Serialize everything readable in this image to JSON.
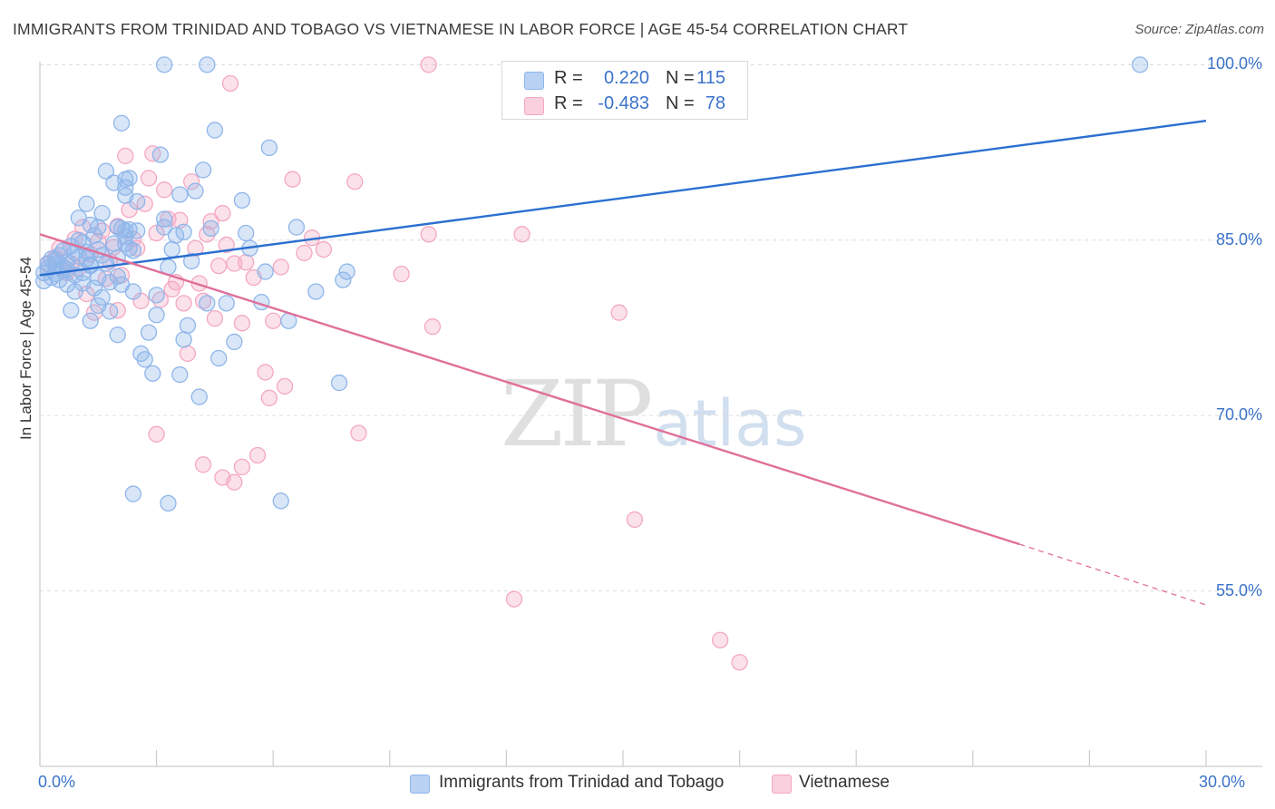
{
  "header": {
    "title": "IMMIGRANTS FROM TRINIDAD AND TOBAGO VS VIETNAMESE IN LABOR FORCE | AGE 45-54 CORRELATION CHART",
    "source": "Source: ZipAtlas.com"
  },
  "watermark": {
    "zip": "ZIP",
    "atlas": "atlas"
  },
  "legend": {
    "series1": {
      "r_label": "R =",
      "r_value": "0.220",
      "n_label": "N =",
      "n_value": "115",
      "color": "#a8c8f0"
    },
    "series2": {
      "r_label": "R =",
      "r_value": "-0.483",
      "n_label": "N =",
      "n_value": "78",
      "color": "#f8bcd0"
    }
  },
  "bottom_legend": {
    "series1_label": "Immigrants from Trinidad and Tobago",
    "series2_label": "Vietnamese"
  },
  "colors": {
    "blue_point": "#8fb6ea",
    "blue_line": "#2b6fd0",
    "pink_point": "#f4a8c2",
    "pink_line": "#e0709a",
    "grid": "#dddddd"
  },
  "chart_data": {
    "type": "scatter",
    "title": "IMMIGRANTS FROM TRINIDAD AND TOBAGO VS VIETNAMESE IN LABOR FORCE | AGE 45-54 CORRELATION CHART",
    "xlabel": "",
    "ylabel": "In Labor Force | Age 45-54",
    "xlim": [
      0,
      30
    ],
    "ylim": [
      40,
      101.5
    ],
    "x_tick_labels": [
      "0.0%",
      "30.0%"
    ],
    "y_ticks": [
      55,
      70,
      85,
      100
    ],
    "y_tick_labels": [
      "55.0%",
      "70.0%",
      "85.0%",
      "100.0%"
    ],
    "grid": true,
    "series": [
      {
        "name": "Immigrants from Trinidad and Tobago",
        "r": 0.22,
        "n": 115,
        "trend": {
          "x": [
            0,
            30
          ],
          "y": [
            82.0,
            95.2
          ]
        },
        "points": [
          [
            0.1,
            82.2
          ],
          [
            0.1,
            81.5
          ],
          [
            0.2,
            83.0
          ],
          [
            0.2,
            82.6
          ],
          [
            0.3,
            81.8
          ],
          [
            0.3,
            83.4
          ],
          [
            0.4,
            82.1
          ],
          [
            0.4,
            82.9
          ],
          [
            0.5,
            81.6
          ],
          [
            0.5,
            83.7
          ],
          [
            0.6,
            82.4
          ],
          [
            0.6,
            84.1
          ],
          [
            0.7,
            81.2
          ],
          [
            0.7,
            83.1
          ],
          [
            0.8,
            79.0
          ],
          [
            0.8,
            84.5
          ],
          [
            0.9,
            82.0
          ],
          [
            0.9,
            80.6
          ],
          [
            1.0,
            83.6
          ],
          [
            1.0,
            85.0
          ],
          [
            1.0,
            86.9
          ],
          [
            1.1,
            81.3
          ],
          [
            1.1,
            82.2
          ],
          [
            1.2,
            88.1
          ],
          [
            1.2,
            84.0
          ],
          [
            1.2,
            83.4
          ],
          [
            1.3,
            82.9
          ],
          [
            1.3,
            78.1
          ],
          [
            1.4,
            85.4
          ],
          [
            1.4,
            80.9
          ],
          [
            1.5,
            84.2
          ],
          [
            1.5,
            86.1
          ],
          [
            1.5,
            79.4
          ],
          [
            1.6,
            80.1
          ],
          [
            1.6,
            87.3
          ],
          [
            1.7,
            90.9
          ],
          [
            1.7,
            83.0
          ],
          [
            1.8,
            81.4
          ],
          [
            1.8,
            78.9
          ],
          [
            1.9,
            84.7
          ],
          [
            1.9,
            89.9
          ],
          [
            2.0,
            76.9
          ],
          [
            2.0,
            86.1
          ],
          [
            2.0,
            81.9
          ],
          [
            2.0,
            83.5
          ],
          [
            2.1,
            81.2
          ],
          [
            2.1,
            95.0
          ],
          [
            2.2,
            89.5
          ],
          [
            2.2,
            85.8
          ],
          [
            2.3,
            90.3
          ],
          [
            2.4,
            84.1
          ],
          [
            2.5,
            88.3
          ],
          [
            2.3,
            85.9
          ],
          [
            2.2,
            90.2
          ],
          [
            2.2,
            85.3
          ],
          [
            2.1,
            86.0
          ],
          [
            2.2,
            88.8
          ],
          [
            2.2,
            84.7
          ],
          [
            2.3,
            84.3
          ],
          [
            2.4,
            80.6
          ],
          [
            2.5,
            85.8
          ],
          [
            2.6,
            75.3
          ],
          [
            2.7,
            74.8
          ],
          [
            2.8,
            77.1
          ],
          [
            2.9,
            73.6
          ],
          [
            3.0,
            78.6
          ],
          [
            3.0,
            80.3
          ],
          [
            3.1,
            92.3
          ],
          [
            3.2,
            86.1
          ],
          [
            3.2,
            86.8
          ],
          [
            3.3,
            82.7
          ],
          [
            3.4,
            84.2
          ],
          [
            3.5,
            85.4
          ],
          [
            3.6,
            73.5
          ],
          [
            3.6,
            88.9
          ],
          [
            3.7,
            76.5
          ],
          [
            3.7,
            85.7
          ],
          [
            3.8,
            77.7
          ],
          [
            3.9,
            83.2
          ],
          [
            4.0,
            89.2
          ],
          [
            4.1,
            71.6
          ],
          [
            4.2,
            91.0
          ],
          [
            4.3,
            79.6
          ],
          [
            4.4,
            86.0
          ],
          [
            4.5,
            94.4
          ],
          [
            4.6,
            74.9
          ],
          [
            4.8,
            79.6
          ],
          [
            5.0,
            76.3
          ],
          [
            5.2,
            88.4
          ],
          [
            5.3,
            85.6
          ],
          [
            5.4,
            84.3
          ],
          [
            5.7,
            79.7
          ],
          [
            5.8,
            82.3
          ],
          [
            5.9,
            92.9
          ],
          [
            6.2,
            62.7
          ],
          [
            6.4,
            78.1
          ],
          [
            6.6,
            86.1
          ],
          [
            7.1,
            80.6
          ],
          [
            7.7,
            72.8
          ],
          [
            7.8,
            81.6
          ],
          [
            7.9,
            82.3
          ],
          [
            3.2,
            100.0
          ],
          [
            4.3,
            100.0
          ],
          [
            28.3,
            100.0
          ],
          [
            2.4,
            63.3
          ],
          [
            3.3,
            62.5
          ],
          [
            1.3,
            82.8
          ],
          [
            1.5,
            81.8
          ],
          [
            0.6,
            82.7
          ],
          [
            0.9,
            83.9
          ],
          [
            1.1,
            84.8
          ],
          [
            1.3,
            86.3
          ],
          [
            0.4,
            83.3
          ],
          [
            0.7,
            82.5
          ],
          [
            1.6,
            83.7
          ]
        ]
      },
      {
        "name": "Vietnamese",
        "r": -0.483,
        "n": 78,
        "trend": {
          "x": [
            0,
            25.2
          ],
          "y": [
            85.5,
            59.0
          ]
        },
        "trend_dashed": {
          "x": [
            25.2,
            30
          ],
          "y": [
            59.0,
            53.8
          ]
        },
        "points": [
          [
            0.2,
            82.9
          ],
          [
            0.4,
            83.5
          ],
          [
            0.5,
            84.3
          ],
          [
            0.7,
            82.2
          ],
          [
            0.8,
            83.0
          ],
          [
            0.9,
            85.1
          ],
          [
            1.0,
            82.6
          ],
          [
            1.1,
            86.1
          ],
          [
            1.2,
            80.4
          ],
          [
            1.3,
            83.8
          ],
          [
            1.4,
            78.8
          ],
          [
            1.5,
            84.9
          ],
          [
            1.6,
            85.8
          ],
          [
            1.7,
            81.7
          ],
          [
            1.8,
            83.2
          ],
          [
            1.9,
            84.4
          ],
          [
            2.0,
            86.2
          ],
          [
            2.1,
            82.0
          ],
          [
            2.2,
            92.2
          ],
          [
            2.3,
            87.6
          ],
          [
            2.4,
            85.1
          ],
          [
            2.5,
            84.3
          ],
          [
            2.6,
            79.8
          ],
          [
            2.7,
            88.1
          ],
          [
            2.8,
            90.3
          ],
          [
            2.9,
            92.4
          ],
          [
            3.0,
            85.6
          ],
          [
            3.1,
            79.9
          ],
          [
            3.2,
            89.3
          ],
          [
            3.3,
            86.8
          ],
          [
            3.4,
            80.8
          ],
          [
            3.5,
            81.4
          ],
          [
            3.6,
            86.7
          ],
          [
            3.7,
            79.6
          ],
          [
            3.8,
            75.3
          ],
          [
            3.9,
            90.0
          ],
          [
            4.0,
            84.3
          ],
          [
            4.1,
            81.3
          ],
          [
            4.2,
            79.8
          ],
          [
            4.3,
            85.5
          ],
          [
            4.4,
            86.6
          ],
          [
            4.5,
            78.3
          ],
          [
            4.6,
            82.8
          ],
          [
            4.7,
            87.3
          ],
          [
            4.8,
            84.6
          ],
          [
            5.0,
            83.0
          ],
          [
            5.2,
            77.9
          ],
          [
            5.3,
            83.1
          ],
          [
            5.5,
            81.8
          ],
          [
            5.8,
            73.7
          ],
          [
            5.9,
            71.5
          ],
          [
            6.0,
            78.1
          ],
          [
            6.2,
            82.7
          ],
          [
            6.3,
            72.5
          ],
          [
            6.5,
            90.2
          ],
          [
            6.8,
            83.9
          ],
          [
            7.0,
            85.2
          ],
          [
            7.3,
            84.2
          ],
          [
            8.1,
            90.0
          ],
          [
            8.2,
            68.5
          ],
          [
            9.3,
            82.1
          ],
          [
            10.0,
            85.5
          ],
          [
            10.1,
            77.6
          ],
          [
            12.4,
            85.5
          ],
          [
            14.9,
            78.8
          ],
          [
            15.3,
            61.1
          ],
          [
            12.2,
            54.3
          ],
          [
            17.5,
            50.8
          ],
          [
            18.0,
            48.9
          ],
          [
            3.0,
            68.4
          ],
          [
            4.2,
            65.8
          ],
          [
            4.7,
            64.7
          ],
          [
            5.0,
            64.3
          ],
          [
            5.2,
            65.6
          ],
          [
            5.6,
            66.6
          ],
          [
            4.9,
            98.4
          ],
          [
            10.0,
            100.0
          ],
          [
            2.0,
            79.0
          ]
        ]
      }
    ]
  }
}
